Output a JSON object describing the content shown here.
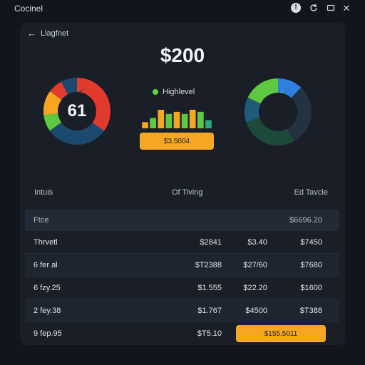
{
  "window": {
    "title": "Cocinel",
    "icons": [
      "help-icon",
      "refresh-icon",
      "window-icon",
      "close-icon"
    ]
  },
  "header": {
    "back_label": "Llagfnet",
    "big_value": "$200"
  },
  "donuts": {
    "left": {
      "center_value": "61",
      "segments": [
        {
          "color": "#e23b2e",
          "value": 35
        },
        {
          "color": "#1c4a6e",
          "value": 30
        },
        {
          "color": "#5ec840",
          "value": 8
        },
        {
          "color": "#f5a623",
          "value": 12
        },
        {
          "color": "#e23b2e",
          "value": 7
        },
        {
          "color": "#1c4a6e",
          "value": 8
        }
      ]
    },
    "right": {
      "segments": [
        {
          "color": "#2f7fe0",
          "value": 12
        },
        {
          "color": "#233140",
          "value": 30
        },
        {
          "color": "#1d4a3a",
          "value": 28
        },
        {
          "color": "#1f5a7a",
          "value": 12
        },
        {
          "color": "#5ec840",
          "value": 18
        }
      ]
    }
  },
  "legend": {
    "label": "Highlevel",
    "color": "#5ed64a"
  },
  "mini_bars": [
    {
      "value": 3,
      "color": "#f5a623"
    },
    {
      "value": 5,
      "color": "#5ec840"
    },
    {
      "value": 9,
      "color": "#f5a623"
    },
    {
      "value": 7,
      "color": "#5ec840"
    },
    {
      "value": 8,
      "color": "#f5a623"
    },
    {
      "value": 7,
      "color": "#5ec840"
    },
    {
      "value": 9,
      "color": "#f5a623"
    },
    {
      "value": 8,
      "color": "#5ec840"
    },
    {
      "value": 4,
      "color": "#2aa87a"
    }
  ],
  "pill_value": "$3.5004",
  "columns": {
    "left": "Intuis",
    "middle": "Of Tiving",
    "right": "Ed Tavcle"
  },
  "table": {
    "header": {
      "label": "Ftce",
      "total": "$6696.20"
    },
    "rows": [
      {
        "label": "Thrvetl",
        "a": "$2841",
        "b": "$3.40",
        "c": "$7450"
      },
      {
        "label": "6 fer al",
        "a": "$T2388",
        "b": "$27/60",
        "c": "$7680"
      },
      {
        "label": "6 fzy.25",
        "a": "$1.555",
        "b": "$22.20",
        "c": "$1600"
      },
      {
        "label": "2 fey.38",
        "a": "$1.767",
        "b": "$4500",
        "c": "$T388"
      },
      {
        "label": "9 fep.95",
        "a": "$T5.10",
        "b": "",
        "c": "",
        "highlight": "$155.5011"
      }
    ]
  },
  "accent": "#f5a623"
}
